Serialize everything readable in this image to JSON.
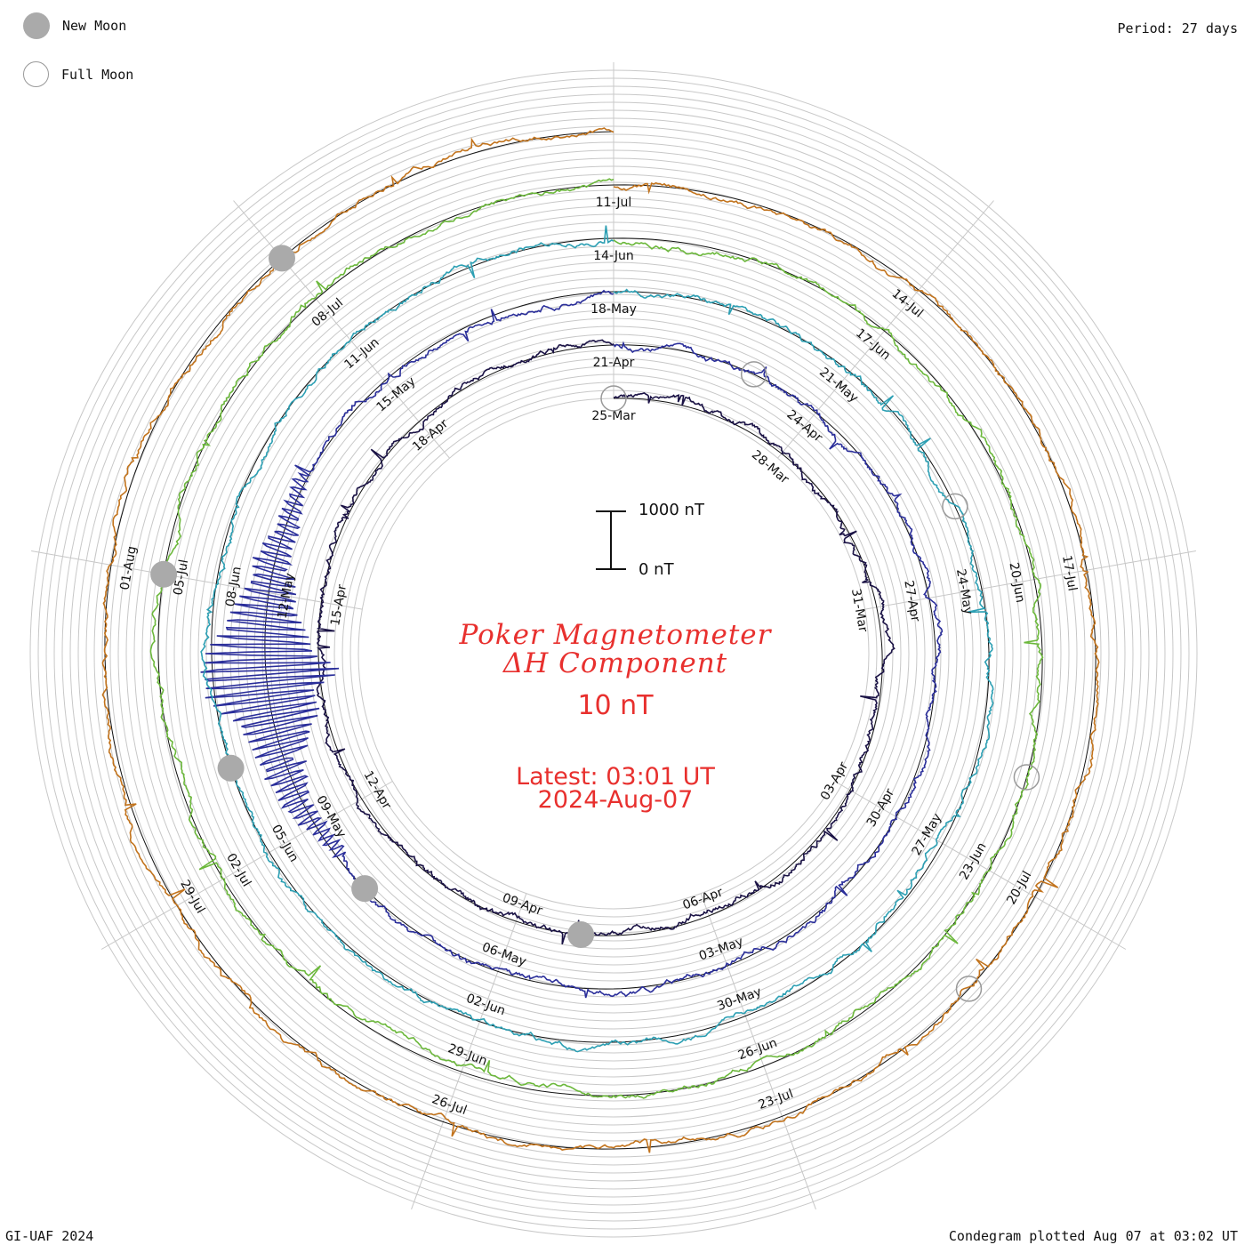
{
  "legend": {
    "new_moon_label": "New Moon",
    "full_moon_label": "Full Moon",
    "new_moon_color": "#aaaaaa",
    "full_moon_color": "#ffffff"
  },
  "period_label": "Period: 27 days",
  "title": {
    "line1": "Poker Magnetometer",
    "line2": "ΔH Component",
    "line3": "10 nT",
    "latest": "Latest: 03:01 UT",
    "date": "2024-Aug-07",
    "color": "#e8302e"
  },
  "scale_bar": {
    "top_label": "1000 nT",
    "bottom_label": "0 nT"
  },
  "footer": {
    "left": "GI-UAF 2024",
    "right": "Condegram plotted Aug 07 at 03:02 UT"
  },
  "chart_data": {
    "type": "condegram",
    "period_days": 27,
    "rotation": "clockwise",
    "start_date": "2024-03-25",
    "end_date": "2024-08-07",
    "component": "ΔH",
    "units": "nT",
    "cycles": [
      {
        "color": "#1a1245",
        "date_labels": [
          "25-Mar",
          "28-Mar",
          "31-Mar",
          "03-Apr",
          "06-Apr",
          "09-Apr",
          "12-Apr",
          "15-Apr",
          "18-Apr"
        ]
      },
      {
        "color": "#2a2e9a",
        "date_labels": [
          "21-Apr",
          "24-Apr",
          "27-Apr",
          "30-Apr",
          "03-May",
          "06-May",
          "09-May",
          "12-May",
          "15-May"
        ]
      },
      {
        "color": "#2c9fb3",
        "date_labels": [
          "18-May",
          "21-May",
          "24-May",
          "27-May",
          "30-May",
          "02-Jun",
          "05-Jun",
          "08-Jun",
          "11-Jun"
        ]
      },
      {
        "color": "#6cb83c",
        "date_labels": [
          "14-Jun",
          "17-Jun",
          "20-Jun",
          "23-Jun",
          "26-Jun",
          "29-Jun",
          "02-Jul",
          "05-Jul",
          "08-Jul"
        ]
      },
      {
        "color": "#c2731c",
        "date_labels": [
          "11-Jul",
          "14-Jul",
          "17-Jul",
          "20-Jul",
          "23-Jul",
          "26-Jul",
          "29-Jul",
          "01-Aug"
        ]
      }
    ],
    "new_moons": [
      "2024-04-08",
      "2024-05-08",
      "2024-06-06",
      "2024-07-05",
      "2024-08-04"
    ],
    "full_moons": [
      "2024-03-25",
      "2024-04-23",
      "2024-05-23",
      "2024-06-22",
      "2024-07-21"
    ]
  }
}
